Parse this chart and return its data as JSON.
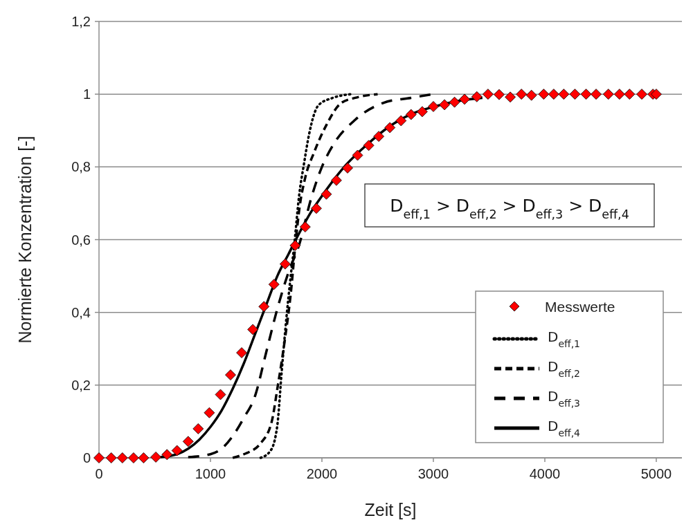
{
  "chart_data": {
    "type": "line",
    "xlabel": "Zeit [s]",
    "ylabel": "Normierte Konzentration  [-]",
    "xlim": [
      0,
      5230
    ],
    "xticks": [
      0,
      1000,
      2000,
      3000,
      4000,
      5000
    ],
    "ylim": [
      0,
      1.2
    ],
    "yticks": [
      0,
      {
        "value": 0.2,
        "label": "0,2"
      },
      {
        "value": 0.4,
        "label": "0,4"
      },
      {
        "value": 0.6,
        "label": "0,6"
      },
      {
        "value": 0.8,
        "label": "0,8"
      },
      1,
      {
        "value": 1.2,
        "label": "1,2"
      }
    ],
    "grid": "y",
    "legend": "bottom right",
    "annotations": [
      "D$_{eff,1}$ > D$_{eff,2}$ > D$_{eff,3}$ > D$_{eff,4}$"
    ],
    "series": [
      {
        "name": "Messwerte",
        "type": "scatter",
        "marker": "diamond",
        "color": "#ff0000",
        "x": [
          0,
          110,
          210,
          310,
          400,
          510,
          610,
          700,
          800,
          890,
          990,
          1090,
          1180,
          1280,
          1380,
          1480,
          1570,
          1670,
          1760,
          1850,
          1950,
          2040,
          2130,
          2230,
          2320,
          2420,
          2510,
          2610,
          2710,
          2800,
          2900,
          3000,
          3100,
          3190,
          3280,
          3390,
          3490,
          3590,
          3690,
          3790,
          3880,
          3990,
          4080,
          4170,
          4270,
          4370,
          4460,
          4570,
          4670,
          4760,
          4870,
          4970,
          5000
        ],
        "values": [
          0,
          0,
          0,
          0,
          0,
          0.002,
          0.009,
          0.02,
          0.045,
          0.08,
          0.124,
          0.174,
          0.228,
          0.289,
          0.353,
          0.416,
          0.477,
          0.533,
          0.584,
          0.635,
          0.686,
          0.725,
          0.763,
          0.797,
          0.832,
          0.859,
          0.884,
          0.908,
          0.927,
          0.944,
          0.952,
          0.966,
          0.971,
          0.978,
          0.986,
          0.993,
          1,
          0.999,
          0.992,
          1,
          0.997,
          1,
          1,
          1,
          1,
          1,
          1,
          1,
          1,
          1,
          1,
          1,
          1
        ]
      },
      {
        "name": "D$_{eff,1}$",
        "line_style": "dotted",
        "color": "#000000",
        "x": [
          1450,
          1540,
          1600,
          1640,
          1680,
          1720,
          1750,
          1795,
          1840,
          1885,
          1970,
          2100,
          2260
        ],
        "values": [
          0,
          0.02,
          0.09,
          0.24,
          0.38,
          0.5,
          0.58,
          0.72,
          0.81,
          0.89,
          0.97,
          0.99,
          1
        ]
      },
      {
        "name": "D$_{eff,2}$",
        "line_style": "dashed",
        "color": "#000000",
        "x": [
          1200,
          1300,
          1450,
          1550,
          1600,
          1670,
          1720,
          1760,
          1800,
          1850,
          1930,
          2040,
          2170,
          2300,
          2500
        ],
        "values": [
          0,
          0.01,
          0.04,
          0.1,
          0.19,
          0.33,
          0.45,
          0.58,
          0.69,
          0.77,
          0.84,
          0.915,
          0.975,
          0.99,
          1
        ]
      },
      {
        "name": "D$_{eff,3}$",
        "line_style": "dashed",
        "color": "#000000",
        "x": [
          800,
          1000,
          1100,
          1200,
          1300,
          1400,
          1500,
          1600,
          1700,
          1800,
          1900,
          2000,
          2100,
          2300,
          2550,
          2800,
          3000
        ],
        "values": [
          0.002,
          0.01,
          0.025,
          0.06,
          0.11,
          0.17,
          0.29,
          0.41,
          0.51,
          0.59,
          0.71,
          0.8,
          0.86,
          0.93,
          0.976,
          0.99,
          1
        ]
      },
      {
        "name": "D$_{eff,4}$",
        "line_style": "solid",
        "color": "#000000",
        "x": [
          550,
          700,
          900,
          1000,
          1100,
          1200,
          1300,
          1400,
          1500,
          1600,
          1700,
          1800,
          1900,
          2000,
          2200,
          2400,
          2600,
          2800,
          3000,
          3300,
          3440
        ],
        "values": [
          0.002,
          0.01,
          0.05,
          0.085,
          0.13,
          0.19,
          0.26,
          0.34,
          0.42,
          0.5,
          0.56,
          0.62,
          0.675,
          0.72,
          0.8,
          0.86,
          0.91,
          0.945,
          0.965,
          0.985,
          0.99
        ]
      }
    ]
  }
}
